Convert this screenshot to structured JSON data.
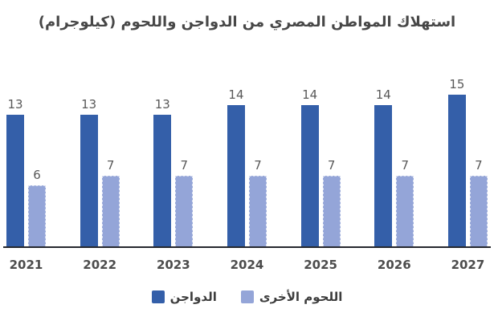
{
  "title": "استهلاك المواطن المصري من الدواجن واللحوم (كيلوجرام)",
  "chart_data": {
    "type": "bar",
    "title": "استهلاك المواطن المصري من الدواجن واللحوم (كيلوجرام)",
    "categories": [
      "2021",
      "2022",
      "2023",
      "2024",
      "2025",
      "2026",
      "2027"
    ],
    "series": [
      {
        "name": "الدواجن",
        "color": "#345FA9",
        "values": [
          13,
          13,
          13,
          14,
          14,
          14,
          15
        ]
      },
      {
        "name": "اللحوم الأخرى",
        "color": "#94A5D8",
        "values": [
          6,
          7,
          7,
          7,
          7,
          7,
          7
        ]
      }
    ],
    "xlabel": "",
    "ylabel": "",
    "ylim": [
      0,
      20
    ],
    "grid": false,
    "y_axis_visible": false,
    "value_labels": true,
    "legend_position": "bottom",
    "colors": {
      "axis_line": "#26282E",
      "value_label": "#595959",
      "category_label": "#4C4C4C",
      "title_text": "#474747",
      "legend_text": "#3D3D3D"
    }
  }
}
